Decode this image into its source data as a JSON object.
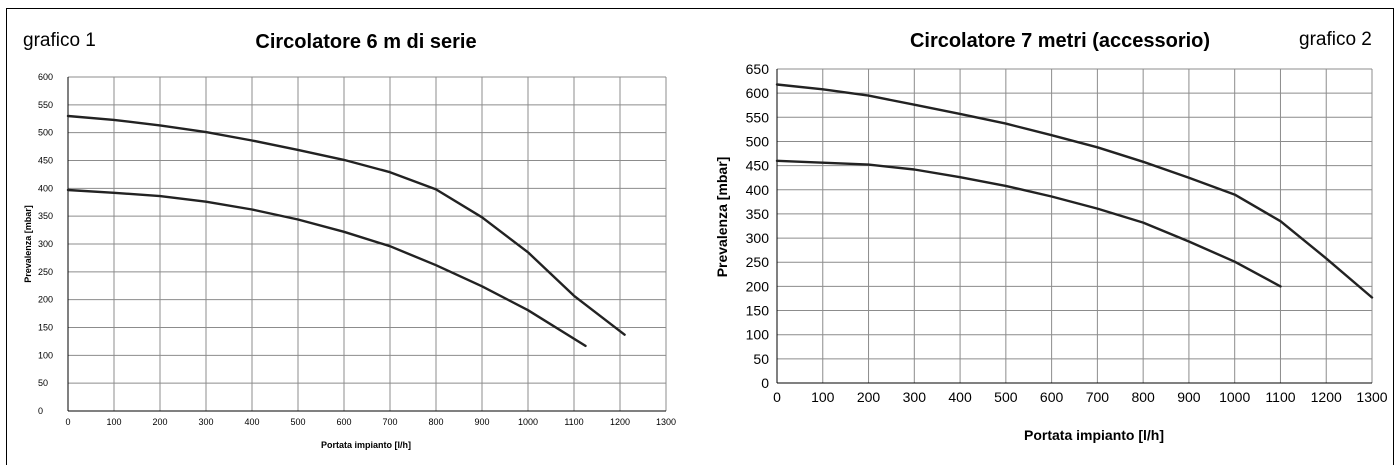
{
  "chart_data": [
    {
      "type": "line",
      "tag": "grafico 1",
      "title": "Circolatore 6 m di serie",
      "xlabel": "Portata impianto [l/h]",
      "ylabel": "Prevalenza [mbar]",
      "xlim": [
        0,
        1300
      ],
      "ylim": [
        0,
        600
      ],
      "x_ticks": [
        0,
        100,
        200,
        300,
        400,
        500,
        600,
        700,
        800,
        900,
        1000,
        1100,
        1200,
        1300
      ],
      "y_ticks": [
        0,
        50,
        100,
        150,
        200,
        250,
        300,
        350,
        400,
        450,
        500,
        550,
        600
      ],
      "grid": true,
      "series": [
        {
          "x": [
            0,
            100,
            200,
            300,
            400,
            500,
            600,
            700,
            800,
            900,
            1000,
            1100,
            1210
          ],
          "y": [
            530,
            523,
            513,
            501,
            486,
            469,
            451,
            429,
            398,
            348,
            285,
            207,
            137
          ]
        },
        {
          "x": [
            0,
            100,
            200,
            300,
            400,
            500,
            600,
            700,
            800,
            900,
            1000,
            1125
          ],
          "y": [
            397,
            392,
            386,
            376,
            362,
            344,
            322,
            296,
            262,
            224,
            181,
            117
          ]
        }
      ]
    },
    {
      "type": "line",
      "tag": "grafico 2",
      "title": "Circolatore 7 metri (accessorio)",
      "xlabel": "Portata impianto [l/h]",
      "ylabel": "Prevalenza [mbar]",
      "xlim": [
        0,
        1300
      ],
      "ylim": [
        0,
        650
      ],
      "x_ticks": [
        0,
        100,
        200,
        300,
        400,
        500,
        600,
        700,
        800,
        900,
        1000,
        1100,
        1200,
        1300
      ],
      "y_ticks": [
        0,
        50,
        100,
        150,
        200,
        250,
        300,
        350,
        400,
        450,
        500,
        550,
        600,
        650
      ],
      "grid": true,
      "series": [
        {
          "x": [
            0,
            100,
            200,
            300,
            400,
            500,
            600,
            700,
            800,
            900,
            1000,
            1100,
            1200,
            1300
          ],
          "y": [
            618,
            608,
            595,
            576,
            557,
            537,
            513,
            488,
            458,
            425,
            390,
            335,
            258,
            177
          ]
        },
        {
          "x": [
            0,
            100,
            200,
            300,
            400,
            500,
            600,
            700,
            800,
            900,
            1000,
            1100
          ],
          "y": [
            460,
            456,
            452,
            442,
            426,
            408,
            386,
            361,
            332,
            293,
            251,
            200
          ]
        }
      ]
    }
  ]
}
